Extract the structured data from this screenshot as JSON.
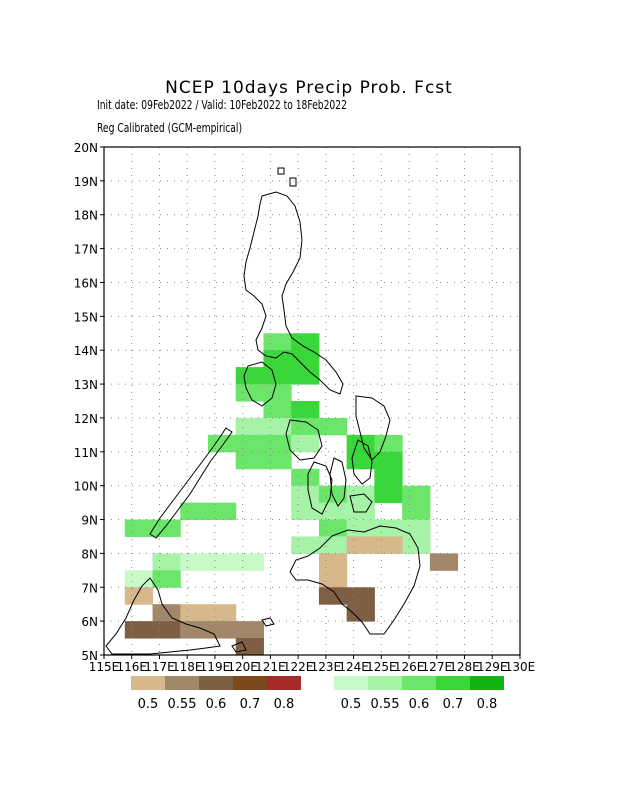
{
  "title": "NCEP 10days Precip Prob. Fcst",
  "init_line": "Init date: 09Feb2022 / Valid: 10Feb2022 to 18Feb2022",
  "calib_line": "Reg Calibrated (GCM-empirical)",
  "map": {
    "lon_range": [
      115,
      130
    ],
    "lat_range": [
      5,
      20
    ],
    "lat_ticks": [
      "5N",
      "6N",
      "7N",
      "8N",
      "9N",
      "10N",
      "11N",
      "12N",
      "13N",
      "14N",
      "15N",
      "16N",
      "17N",
      "18N",
      "19N",
      "20N"
    ],
    "lon_ticks": [
      "115E",
      "116E",
      "117E",
      "118E",
      "119E",
      "120E",
      "121E",
      "122E",
      "123E",
      "124E",
      "125E",
      "126E",
      "127E",
      "128E",
      "129E",
      "130E"
    ],
    "gridlines": true,
    "below_colors": {
      "0.5": "#d6b88c",
      "0.55": "#a3876b",
      "0.6": "#7e5f44",
      "0.7": "#7a4a1c",
      "0.8": "#a52a2a"
    },
    "above_colors": {
      "0.5": "#c8fac8",
      "0.55": "#a6f2a6",
      "0.6": "#6be66b",
      "0.7": "#3ad73a",
      "0.8": "#12b412"
    },
    "above_cells": [
      [
        121,
        18,
        "0.6"
      ],
      [
        122,
        18,
        "0.7"
      ],
      [
        121,
        17,
        "0.7"
      ],
      [
        122,
        17,
        "0.7"
      ],
      [
        120,
        16,
        "0.7"
      ],
      [
        121,
        16,
        "0.7"
      ],
      [
        122,
        16,
        "0.7"
      ],
      [
        120,
        15,
        "0.6"
      ],
      [
        121,
        15,
        "0.6"
      ],
      [
        121,
        14,
        "0.6"
      ],
      [
        122,
        14,
        "0.7"
      ],
      [
        120,
        13,
        "0.55"
      ],
      [
        121,
        13,
        "0.55"
      ],
      [
        122,
        13,
        "0.6"
      ],
      [
        123,
        13,
        "0.6"
      ],
      [
        119,
        12,
        "0.6"
      ],
      [
        120,
        12,
        "0.6"
      ],
      [
        121,
        12,
        "0.6"
      ],
      [
        122,
        12,
        "0.55"
      ],
      [
        124,
        12,
        "0.7"
      ],
      [
        125,
        12,
        "0.6"
      ],
      [
        120,
        11,
        "0.6"
      ],
      [
        121,
        11,
        "0.6"
      ],
      [
        124,
        11,
        "0.7"
      ],
      [
        125,
        11,
        "0.7"
      ],
      [
        122,
        10,
        "0.6"
      ],
      [
        125,
        10,
        "0.7"
      ],
      [
        122,
        9,
        "0.55"
      ],
      [
        123,
        9,
        "0.6"
      ],
      [
        124,
        9,
        "0.55"
      ],
      [
        125,
        9,
        "0.7"
      ],
      [
        126,
        9,
        "0.6"
      ],
      [
        122,
        8,
        "0.55"
      ],
      [
        123,
        8,
        "0.55"
      ],
      [
        124,
        8,
        "0.55"
      ],
      [
        126,
        8,
        "0.6"
      ],
      [
        118,
        8,
        "0.6"
      ],
      [
        119,
        8,
        "0.6"
      ],
      [
        116,
        7,
        "0.6"
      ],
      [
        117,
        7,
        "0.6"
      ],
      [
        123,
        7,
        "0.6"
      ],
      [
        124,
        7,
        "0.55"
      ],
      [
        125,
        7,
        "0.55"
      ],
      [
        126,
        7,
        "0.55"
      ],
      [
        122,
        6,
        "0.55"
      ],
      [
        123,
        6,
        "0.55"
      ],
      [
        125,
        6,
        "0.5"
      ],
      [
        126,
        6,
        "0.55"
      ],
      [
        117,
        5,
        "0.55"
      ],
      [
        118,
        5,
        "0.5"
      ],
      [
        119,
        5,
        "0.5"
      ],
      [
        120,
        5,
        "0.5"
      ],
      [
        116,
        4,
        "0.5"
      ],
      [
        117,
        4,
        "0.6"
      ]
    ],
    "below_cells": [
      [
        124,
        6,
        "0.5"
      ],
      [
        125,
        6,
        "0.5"
      ],
      [
        123,
        5,
        "0.5"
      ],
      [
        127,
        5,
        "0.55"
      ],
      [
        123,
        4,
        "0.5"
      ],
      [
        123,
        3,
        "0.6"
      ],
      [
        124,
        3,
        "0.6"
      ],
      [
        124,
        2,
        "0.6"
      ],
      [
        116,
        3,
        "0.5"
      ],
      [
        117,
        2,
        "0.55"
      ],
      [
        118,
        2,
        "0.5"
      ],
      [
        119,
        2,
        "0.5"
      ],
      [
        116,
        1,
        "0.6"
      ],
      [
        117,
        1,
        "0.6"
      ],
      [
        118,
        1,
        "0.55"
      ],
      [
        119,
        1,
        "0.55"
      ],
      [
        120,
        1,
        "0.55"
      ],
      [
        120,
        0,
        "0.6"
      ]
    ]
  },
  "colorbar_below": {
    "colors": [
      "#d6b88c",
      "#a3876b",
      "#7e5f44",
      "#7a4a1c",
      "#a52a2a"
    ],
    "labels": [
      "0.5",
      "0.55",
      "0.6",
      "0.7",
      "0.8"
    ]
  },
  "colorbar_above": {
    "colors": [
      "#c8fac8",
      "#a6f2a6",
      "#6be66b",
      "#3ad73a",
      "#12b412"
    ],
    "labels": [
      "0.5",
      "0.55",
      "0.6",
      "0.7",
      "0.8"
    ]
  }
}
